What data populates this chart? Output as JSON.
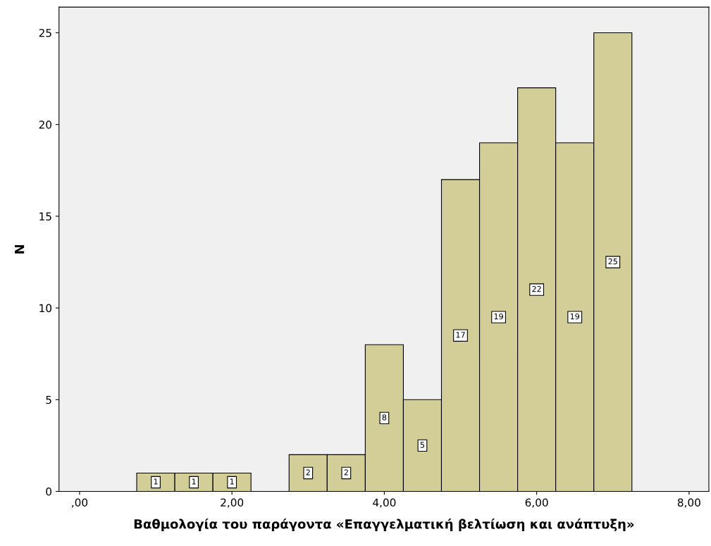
{
  "chart_data": {
    "type": "histogram",
    "xlabel": "Βαθμολογία του παράγοντα «Επαγγελματική βελτίωση και ανάπτυξη»",
    "ylabel": "N",
    "bins": [
      0.75,
      1.25,
      1.75,
      2.25,
      2.75,
      3.25,
      3.75,
      4.25,
      4.75,
      5.25,
      5.75,
      6.25,
      6.75,
      7.25
    ],
    "values": [
      1,
      1,
      1,
      0,
      2,
      2,
      8,
      5,
      17,
      19,
      22,
      19,
      25
    ],
    "value_labels": [
      "1",
      "1",
      "1",
      null,
      "2",
      "2",
      "8",
      "5",
      "17",
      "19",
      "22",
      "19",
      "25"
    ],
    "color": "#d3ce97",
    "xlim": [
      -0.27,
      8.26
    ],
    "ylim": [
      0,
      26.4
    ],
    "xticks": [
      {
        "value": 0,
        "label": ",00"
      },
      {
        "value": 2,
        "label": "2,00"
      },
      {
        "value": 4,
        "label": "4,00"
      },
      {
        "value": 6,
        "label": "6,00"
      },
      {
        "value": 8,
        "label": "8,00"
      }
    ],
    "yticks": [
      0,
      5,
      10,
      15,
      20,
      25
    ],
    "grid": false
  }
}
